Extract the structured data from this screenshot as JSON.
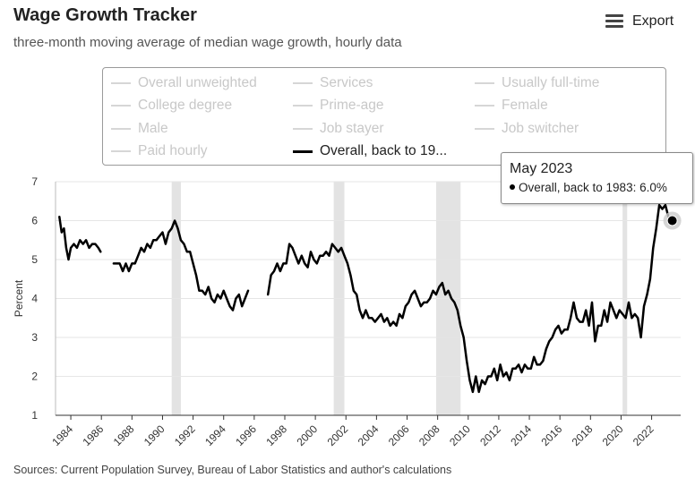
{
  "header": {
    "title": "Wage Growth Tracker",
    "subtitle": "three-month moving average of median wage growth, hourly data",
    "export_label": "Export",
    "export_icon": "hamburger-menu-icon"
  },
  "legend": {
    "items": [
      {
        "label": "Overall unweighted",
        "active": false
      },
      {
        "label": "Services",
        "active": false
      },
      {
        "label": "Usually full-time",
        "active": false
      },
      {
        "label": "College degree",
        "active": false
      },
      {
        "label": "Prime-age",
        "active": false
      },
      {
        "label": "Female",
        "active": false
      },
      {
        "label": "Male",
        "active": false
      },
      {
        "label": "Job stayer",
        "active": false
      },
      {
        "label": "Job switcher",
        "active": false
      },
      {
        "label": "Paid hourly",
        "active": false
      },
      {
        "label": "Overall, back to 19...",
        "active": true
      }
    ],
    "active_color": "#000000",
    "inactive_color": "#cccccc"
  },
  "tooltip": {
    "title": "May 2023",
    "series_label": "Overall, back to 1983:",
    "value_text": "6.0%"
  },
  "source": "Sources: Current Population Survey, Bureau of Labor Statistics and author's calculations",
  "chart_data": {
    "type": "line",
    "title": "Wage Growth Tracker",
    "subtitle": "three-month moving average of median wage growth, hourly data",
    "ylabel": "Percent",
    "xlabel": "",
    "ylim": [
      1,
      7
    ],
    "xlim": [
      1983.0,
      2023.9
    ],
    "y_ticks": [
      "1",
      "2",
      "3",
      "4",
      "5",
      "6",
      "7"
    ],
    "x_ticks": [
      "1984",
      "1986",
      "1988",
      "1990",
      "1992",
      "1994",
      "1996",
      "1998",
      "2000",
      "2002",
      "2004",
      "2006",
      "2008",
      "2010",
      "2012",
      "2014",
      "2016",
      "2018",
      "2020",
      "2022"
    ],
    "grid": true,
    "line_color": "#000000",
    "recession_color": "#e3e3e3",
    "recessions": [
      [
        1990.6,
        1991.2
      ],
      [
        2001.2,
        2001.9
      ],
      [
        2007.9,
        2009.5
      ],
      [
        2020.1,
        2020.4
      ]
    ],
    "highlight": {
      "x": 2023.35,
      "y": 6.0
    },
    "series": [
      {
        "name": "Overall, back to 1983",
        "segments": [
          [
            [
              1983.25,
              6.1
            ],
            [
              1983.4,
              5.7
            ],
            [
              1983.55,
              5.8
            ],
            [
              1983.7,
              5.3
            ],
            [
              1983.85,
              5.0
            ],
            [
              1984.0,
              5.3
            ],
            [
              1984.2,
              5.4
            ],
            [
              1984.4,
              5.3
            ],
            [
              1984.6,
              5.5
            ],
            [
              1984.8,
              5.4
            ],
            [
              1985.0,
              5.5
            ],
            [
              1985.2,
              5.3
            ],
            [
              1985.4,
              5.4
            ],
            [
              1985.6,
              5.4
            ],
            [
              1985.8,
              5.3
            ],
            [
              1985.95,
              5.2
            ]
          ],
          [
            [
              1986.8,
              4.9
            ],
            [
              1987.0,
              4.9
            ],
            [
              1987.2,
              4.9
            ],
            [
              1987.4,
              4.7
            ],
            [
              1987.6,
              4.9
            ],
            [
              1987.8,
              4.7
            ],
            [
              1988.0,
              4.9
            ],
            [
              1988.2,
              4.9
            ],
            [
              1988.4,
              5.1
            ],
            [
              1988.6,
              5.3
            ],
            [
              1988.8,
              5.2
            ],
            [
              1989.0,
              5.4
            ],
            [
              1989.2,
              5.3
            ],
            [
              1989.4,
              5.5
            ],
            [
              1989.6,
              5.5
            ],
            [
              1989.8,
              5.6
            ],
            [
              1990.0,
              5.7
            ],
            [
              1990.2,
              5.4
            ],
            [
              1990.4,
              5.7
            ],
            [
              1990.6,
              5.8
            ],
            [
              1990.8,
              6.0
            ],
            [
              1991.0,
              5.8
            ],
            [
              1991.2,
              5.5
            ],
            [
              1991.4,
              5.4
            ],
            [
              1991.6,
              5.2
            ],
            [
              1991.8,
              5.2
            ],
            [
              1992.0,
              4.9
            ],
            [
              1992.2,
              4.6
            ],
            [
              1992.4,
              4.2
            ],
            [
              1992.6,
              4.2
            ],
            [
              1992.8,
              4.1
            ],
            [
              1993.0,
              4.3
            ],
            [
              1993.2,
              4.0
            ],
            [
              1993.4,
              3.9
            ],
            [
              1993.6,
              4.1
            ],
            [
              1993.8,
              4.0
            ],
            [
              1994.0,
              4.2
            ],
            [
              1994.2,
              4.0
            ],
            [
              1994.4,
              3.8
            ],
            [
              1994.6,
              3.7
            ],
            [
              1994.8,
              4.0
            ],
            [
              1995.0,
              4.1
            ],
            [
              1995.2,
              3.8
            ],
            [
              1995.4,
              4.0
            ],
            [
              1995.6,
              4.2
            ]
          ],
          [
            [
              1996.9,
              4.1
            ],
            [
              1997.1,
              4.6
            ],
            [
              1997.3,
              4.7
            ],
            [
              1997.5,
              4.9
            ],
            [
              1997.7,
              4.7
            ],
            [
              1997.9,
              4.9
            ],
            [
              1998.1,
              4.9
            ],
            [
              1998.3,
              5.4
            ],
            [
              1998.5,
              5.3
            ],
            [
              1998.7,
              5.1
            ],
            [
              1998.9,
              4.9
            ],
            [
              1999.1,
              5.1
            ],
            [
              1999.3,
              4.9
            ],
            [
              1999.5,
              4.8
            ],
            [
              1999.7,
              5.2
            ],
            [
              1999.9,
              5.0
            ],
            [
              2000.1,
              4.9
            ],
            [
              2000.3,
              5.1
            ],
            [
              2000.5,
              5.1
            ],
            [
              2000.7,
              5.2
            ],
            [
              2000.9,
              5.1
            ],
            [
              2001.1,
              5.4
            ],
            [
              2001.3,
              5.3
            ],
            [
              2001.5,
              5.2
            ],
            [
              2001.7,
              5.3
            ],
            [
              2001.9,
              5.1
            ],
            [
              2002.1,
              4.9
            ],
            [
              2002.3,
              4.6
            ],
            [
              2002.5,
              4.2
            ],
            [
              2002.7,
              4.1
            ],
            [
              2002.9,
              3.7
            ],
            [
              2003.1,
              3.5
            ],
            [
              2003.3,
              3.7
            ],
            [
              2003.5,
              3.5
            ],
            [
              2003.7,
              3.5
            ],
            [
              2003.9,
              3.4
            ],
            [
              2004.1,
              3.5
            ],
            [
              2004.3,
              3.6
            ],
            [
              2004.5,
              3.4
            ],
            [
              2004.7,
              3.5
            ],
            [
              2004.9,
              3.3
            ],
            [
              2005.1,
              3.4
            ],
            [
              2005.3,
              3.3
            ],
            [
              2005.5,
              3.6
            ],
            [
              2005.7,
              3.5
            ],
            [
              2005.9,
              3.8
            ],
            [
              2006.1,
              3.9
            ],
            [
              2006.3,
              4.1
            ],
            [
              2006.5,
              4.2
            ],
            [
              2006.7,
              4.0
            ],
            [
              2006.9,
              3.8
            ],
            [
              2007.1,
              3.9
            ],
            [
              2007.3,
              3.9
            ],
            [
              2007.5,
              4.0
            ],
            [
              2007.7,
              4.2
            ],
            [
              2007.9,
              4.1
            ],
            [
              2008.1,
              4.3
            ],
            [
              2008.3,
              4.4
            ],
            [
              2008.5,
              4.1
            ],
            [
              2008.7,
              4.2
            ],
            [
              2008.9,
              4.0
            ],
            [
              2009.1,
              3.9
            ],
            [
              2009.3,
              3.7
            ],
            [
              2009.5,
              3.3
            ],
            [
              2009.7,
              3.0
            ],
            [
              2009.9,
              2.4
            ],
            [
              2010.1,
              1.9
            ],
            [
              2010.3,
              1.6
            ],
            [
              2010.5,
              2.0
            ],
            [
              2010.7,
              1.6
            ],
            [
              2010.9,
              1.9
            ],
            [
              2011.1,
              1.8
            ],
            [
              2011.3,
              2.0
            ],
            [
              2011.5,
              2.0
            ],
            [
              2011.7,
              2.2
            ],
            [
              2011.9,
              1.9
            ],
            [
              2012.1,
              2.3
            ],
            [
              2012.3,
              2.0
            ],
            [
              2012.5,
              2.1
            ],
            [
              2012.7,
              1.9
            ],
            [
              2012.9,
              2.2
            ],
            [
              2013.1,
              2.2
            ],
            [
              2013.3,
              2.3
            ],
            [
              2013.5,
              2.1
            ],
            [
              2013.7,
              2.3
            ],
            [
              2013.9,
              2.2
            ],
            [
              2014.1,
              2.2
            ],
            [
              2014.3,
              2.5
            ],
            [
              2014.5,
              2.3
            ],
            [
              2014.7,
              2.3
            ],
            [
              2014.9,
              2.4
            ],
            [
              2015.1,
              2.7
            ],
            [
              2015.3,
              2.9
            ],
            [
              2015.5,
              3.0
            ],
            [
              2015.7,
              3.2
            ],
            [
              2015.9,
              3.3
            ],
            [
              2016.1,
              3.1
            ],
            [
              2016.3,
              3.2
            ],
            [
              2016.5,
              3.2
            ],
            [
              2016.7,
              3.5
            ],
            [
              2016.9,
              3.9
            ],
            [
              2017.1,
              3.5
            ],
            [
              2017.3,
              3.4
            ],
            [
              2017.5,
              3.4
            ],
            [
              2017.7,
              3.7
            ],
            [
              2017.9,
              3.3
            ],
            [
              2018.1,
              3.9
            ],
            [
              2018.3,
              2.9
            ],
            [
              2018.5,
              3.3
            ],
            [
              2018.7,
              3.3
            ],
            [
              2018.9,
              3.7
            ],
            [
              2019.1,
              3.4
            ],
            [
              2019.3,
              3.9
            ],
            [
              2019.5,
              3.7
            ],
            [
              2019.7,
              3.5
            ],
            [
              2019.9,
              3.7
            ],
            [
              2020.1,
              3.6
            ],
            [
              2020.3,
              3.5
            ],
            [
              2020.5,
              3.9
            ],
            [
              2020.7,
              3.5
            ],
            [
              2020.9,
              3.6
            ],
            [
              2021.1,
              3.5
            ],
            [
              2021.3,
              3.0
            ],
            [
              2021.5,
              3.8
            ],
            [
              2021.7,
              4.1
            ],
            [
              2021.9,
              4.5
            ],
            [
              2022.1,
              5.3
            ],
            [
              2022.3,
              5.8
            ],
            [
              2022.5,
              6.4
            ],
            [
              2022.7,
              6.3
            ],
            [
              2022.9,
              6.4
            ],
            [
              2023.1,
              6.1
            ],
            [
              2023.35,
              6.0
            ]
          ]
        ]
      }
    ]
  }
}
